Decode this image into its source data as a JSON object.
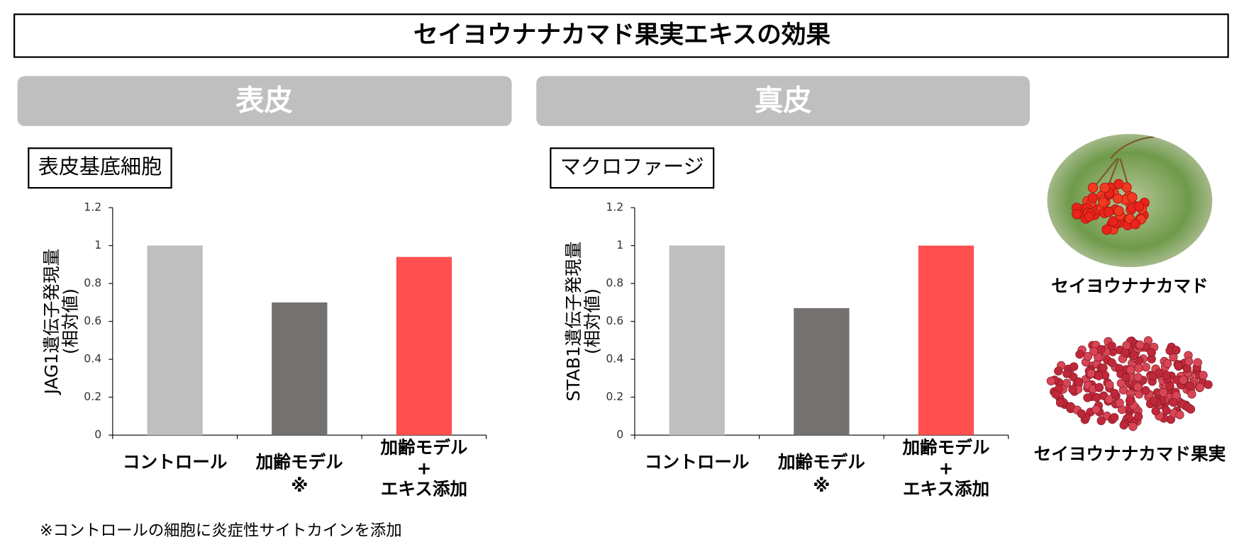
{
  "title": "セイヨウナナカマド果実エキスの効果",
  "sections": [
    "表皮",
    "真皮"
  ],
  "chart_data": [
    {
      "type": "bar",
      "title": "表皮基底細胞",
      "y_label": "JAG1遺伝子発現量\n(相対値)",
      "categories": [
        "コントロール",
        "加齢モデル\n※",
        "加齢モデル\n+\nエキス添加"
      ],
      "values": [
        1,
        0.7,
        0.94
      ],
      "colors": [
        "#bfbfbf",
        "#757171",
        "#ff4f4f"
      ],
      "ylim": [
        0,
        1.2
      ],
      "yticks": [
        0,
        0.2,
        0.4,
        0.6,
        0.8,
        1,
        1.2
      ],
      "grid": false
    },
    {
      "type": "bar",
      "title": "マクロファージ",
      "y_label": "STAB1遺伝子発現量\n(相対値)",
      "categories": [
        "コントロール",
        "加齢モデル\n※",
        "加齢モデル\n+\nエキス添加"
      ],
      "values": [
        1,
        0.67,
        1.0
      ],
      "colors": [
        "#bfbfbf",
        "#757171",
        "#ff4f4f"
      ],
      "ylim": [
        0,
        1.2
      ],
      "yticks": [
        0,
        0.2,
        0.4,
        0.6,
        0.8,
        1,
        1.2
      ],
      "grid": false
    }
  ],
  "images": [
    {
      "caption": "セイヨウナナカマド"
    },
    {
      "caption": "セイヨウナナカマド果実"
    }
  ],
  "footnote": "※コントロールの細胞に炎症性サイトカインを添加"
}
